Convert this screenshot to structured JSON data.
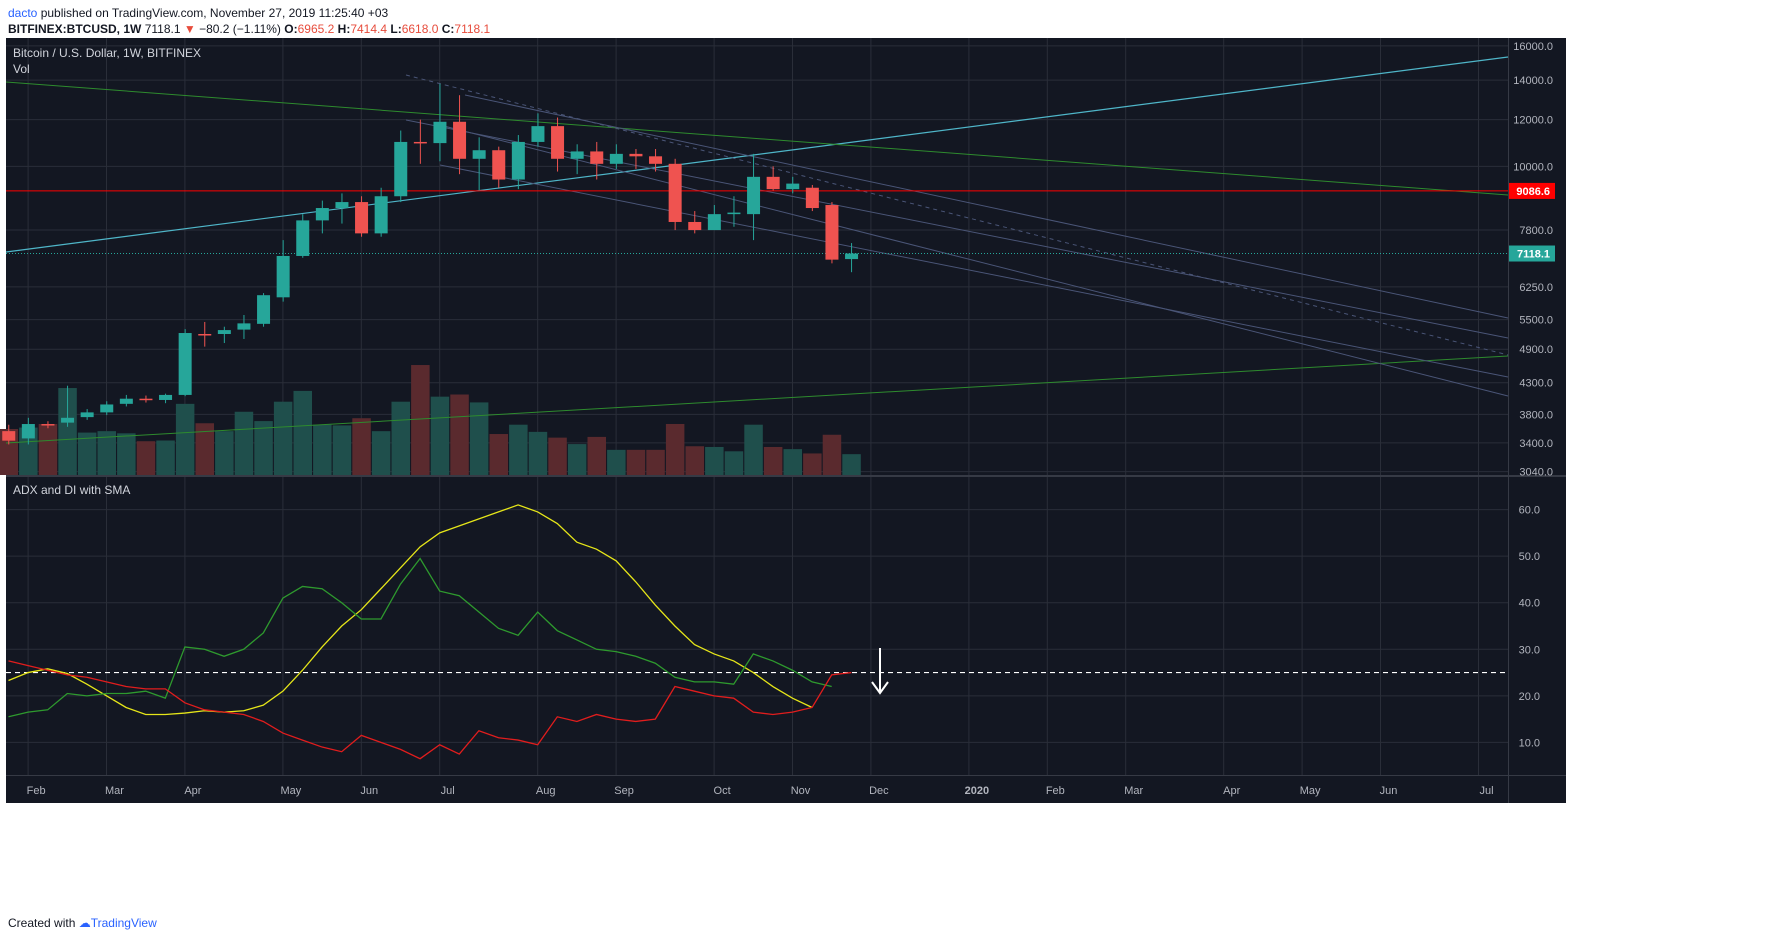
{
  "header": {
    "user": "dacto",
    "published": "published on TradingView.com, November 27, 2019 11:25:40 +03",
    "symbol": "BITFINEX:BTCUSD, 1W",
    "last": "7118.1",
    "change": "−80.2 (−1.11%)",
    "o_label": "O:",
    "o_value": "6965.2",
    "h_label": "H:",
    "h_value": "7414.4",
    "l_label": "L:",
    "l_value": "6618.0",
    "c_label": "C:",
    "c_value": "7118.1"
  },
  "footer": {
    "created_with": "Created with",
    "brand": "TradingView"
  },
  "colors": {
    "background": "#131722",
    "bull": "#26a69a",
    "bear": "#ef5350",
    "adx": "#e6e619",
    "di_plus": "#2e9a2e",
    "di_minus": "#e11d1d"
  },
  "chart_data": [
    {
      "type": "candlestick",
      "title": "Bitcoin / U.S. Dollar, 1W, BITFINEX",
      "indicator": "Vol",
      "scale": "log",
      "ylim": [
        3000,
        16500
      ],
      "y_ticks": [
        "16000.0",
        "14000.0",
        "12000.0",
        "10000.0",
        "7800.0",
        "6250.0",
        "5500.0",
        "4900.0",
        "4300.0",
        "3800.0",
        "3400.0",
        "3040.0"
      ],
      "y_tick_values": [
        16000,
        14000,
        12000,
        10000,
        7800,
        6250,
        5500,
        4900,
        4300,
        3800,
        3400,
        3040
      ],
      "x_ticks": [
        "Feb",
        "Mar",
        "Apr",
        "May",
        "Jun",
        "Jul",
        "Aug",
        "Sep",
        "Oct",
        "Nov",
        "Dec",
        "2020",
        "Feb",
        "Mar",
        "Apr",
        "May",
        "Jun",
        "Jul"
      ],
      "x_tick_weeks": [
        1,
        5,
        9,
        14,
        18,
        22,
        27,
        31,
        36,
        40,
        44,
        49,
        53,
        57,
        62,
        66,
        70,
        75
      ],
      "price_labels": [
        {
          "text": "9086.6",
          "value": 9086.6,
          "color": "#ff0000"
        },
        {
          "text": "7118.1",
          "value": 7118.1,
          "color": "#26a69a"
        }
      ],
      "candles": [
        {
          "o": 3560,
          "h": 3650,
          "l": 3380,
          "c": 3430
        },
        {
          "o": 3460,
          "h": 3750,
          "l": 3380,
          "c": 3660
        },
        {
          "o": 3660,
          "h": 3700,
          "l": 3600,
          "c": 3640
        },
        {
          "o": 3680,
          "h": 4250,
          "l": 3620,
          "c": 3750
        },
        {
          "o": 3760,
          "h": 3880,
          "l": 3720,
          "c": 3830
        },
        {
          "o": 3830,
          "h": 4000,
          "l": 3790,
          "c": 3950
        },
        {
          "o": 3960,
          "h": 4100,
          "l": 3920,
          "c": 4040
        },
        {
          "o": 4040,
          "h": 4090,
          "l": 3980,
          "c": 4030
        },
        {
          "o": 4020,
          "h": 4120,
          "l": 3970,
          "c": 4100
        },
        {
          "o": 4100,
          "h": 5300,
          "l": 4080,
          "c": 5220
        },
        {
          "o": 5200,
          "h": 5450,
          "l": 4950,
          "c": 5190
        },
        {
          "o": 5200,
          "h": 5350,
          "l": 5020,
          "c": 5280
        },
        {
          "o": 5290,
          "h": 5600,
          "l": 5100,
          "c": 5420
        },
        {
          "o": 5410,
          "h": 6100,
          "l": 5350,
          "c": 6050
        },
        {
          "o": 6000,
          "h": 7500,
          "l": 5900,
          "c": 7050
        },
        {
          "o": 7050,
          "h": 8300,
          "l": 7000,
          "c": 8100
        },
        {
          "o": 8100,
          "h": 8750,
          "l": 7700,
          "c": 8500
        },
        {
          "o": 8500,
          "h": 9000,
          "l": 8000,
          "c": 8700
        },
        {
          "o": 8700,
          "h": 8900,
          "l": 7600,
          "c": 7700
        },
        {
          "o": 7700,
          "h": 9200,
          "l": 7600,
          "c": 8900
        },
        {
          "o": 8900,
          "h": 11500,
          "l": 8700,
          "c": 11000
        },
        {
          "o": 11000,
          "h": 12000,
          "l": 10100,
          "c": 10950
        },
        {
          "o": 10950,
          "h": 13800,
          "l": 10200,
          "c": 11900
        },
        {
          "o": 11900,
          "h": 13200,
          "l": 9700,
          "c": 10300
        },
        {
          "o": 10300,
          "h": 11200,
          "l": 9100,
          "c": 10650
        },
        {
          "o": 10650,
          "h": 10800,
          "l": 9200,
          "c": 9500
        },
        {
          "o": 9500,
          "h": 11300,
          "l": 9150,
          "c": 11000
        },
        {
          "o": 11000,
          "h": 12300,
          "l": 10800,
          "c": 11700
        },
        {
          "o": 11700,
          "h": 12100,
          "l": 9800,
          "c": 10300
        },
        {
          "o": 10300,
          "h": 10900,
          "l": 9700,
          "c": 10600
        },
        {
          "o": 10600,
          "h": 11000,
          "l": 9500,
          "c": 10100
        },
        {
          "o": 10100,
          "h": 10900,
          "l": 9900,
          "c": 10500
        },
        {
          "o": 10500,
          "h": 10700,
          "l": 9900,
          "c": 10400
        },
        {
          "o": 10400,
          "h": 10700,
          "l": 9800,
          "c": 10100
        },
        {
          "o": 10100,
          "h": 10300,
          "l": 7800,
          "c": 8050
        },
        {
          "o": 8050,
          "h": 8400,
          "l": 7700,
          "c": 7800
        },
        {
          "o": 7800,
          "h": 8600,
          "l": 7800,
          "c": 8300
        },
        {
          "o": 8300,
          "h": 8900,
          "l": 7900,
          "c": 8350
        },
        {
          "o": 8300,
          "h": 10500,
          "l": 7500,
          "c": 9600
        },
        {
          "o": 9600,
          "h": 10000,
          "l": 9100,
          "c": 9150
        },
        {
          "o": 9150,
          "h": 9600,
          "l": 9000,
          "c": 9350
        },
        {
          "o": 9200,
          "h": 9300,
          "l": 8400,
          "c": 8500
        },
        {
          "o": 8600,
          "h": 8700,
          "l": 6850,
          "c": 6950
        },
        {
          "o": 6965.2,
          "h": 7414.4,
          "l": 6618.0,
          "c": 7118.1
        }
      ],
      "volume": [
        320,
        330,
        355,
        605,
        295,
        305,
        290,
        235,
        240,
        495,
        360,
        305,
        440,
        375,
        510,
        585,
        350,
        345,
        395,
        305,
        510,
        765,
        545,
        560,
        505,
        285,
        350,
        300,
        260,
        215,
        265,
        175,
        175,
        175,
        355,
        200,
        195,
        165,
        350,
        195,
        180,
        150,
        280,
        145
      ]
    },
    {
      "type": "line",
      "title": "ADX and DI with SMA",
      "ylim": [
        3,
        67
      ],
      "y_ticks": [
        "60.0",
        "50.0",
        "40.0",
        "30.0",
        "20.0",
        "10.0"
      ],
      "y_tick_values": [
        60,
        50,
        40,
        30,
        20,
        10
      ],
      "level": 25,
      "series": [
        {
          "name": "ADX",
          "color": "#e6e619",
          "values": [
            23.3,
            25.0,
            25.8,
            24.8,
            22.5,
            20.0,
            17.5,
            16.0,
            16.0,
            16.3,
            16.8,
            16.5,
            16.8,
            18.0,
            21.0,
            25.5,
            30.5,
            35.0,
            38.5,
            43.0,
            47.5,
            52.0,
            55.0,
            56.5,
            58.0,
            59.5,
            61.0,
            59.5,
            57.0,
            53.0,
            51.5,
            49.0,
            44.5,
            39.5,
            35.0,
            31.0,
            29.0,
            27.5,
            25.0,
            22.0,
            19.5,
            17.5
          ]
        },
        {
          "name": "+DI",
          "color": "#2e9a2e",
          "values": [
            15.5,
            16.5,
            17.0,
            20.5,
            20.0,
            20.5,
            20.5,
            21.0,
            19.5,
            30.5,
            30.0,
            28.5,
            30.0,
            33.5,
            41.0,
            43.5,
            43.0,
            40.0,
            36.5,
            36.5,
            44.0,
            49.5,
            42.5,
            41.5,
            38.0,
            34.5,
            33.0,
            38.0,
            34.0,
            32.0,
            30.0,
            29.5,
            28.5,
            27.0,
            24.0,
            23.0,
            23.0,
            22.5,
            29.0,
            27.5,
            25.5,
            23.0,
            22.0
          ]
        },
        {
          "name": "-DI",
          "color": "#e11d1d",
          "values": [
            27.5,
            26.5,
            25.5,
            24.5,
            24.0,
            23.0,
            22.0,
            21.5,
            21.5,
            18.5,
            17.0,
            16.5,
            16.0,
            14.5,
            12.0,
            10.5,
            9.0,
            8.0,
            11.5,
            10.0,
            8.5,
            6.5,
            9.5,
            7.5,
            12.5,
            11.0,
            10.5,
            9.5,
            15.5,
            14.5,
            16.0,
            15.0,
            14.5,
            15.0,
            22.0,
            21.0,
            20.0,
            19.5,
            16.5,
            16.0,
            16.5,
            17.5,
            24.5,
            25.0
          ]
        }
      ]
    }
  ]
}
